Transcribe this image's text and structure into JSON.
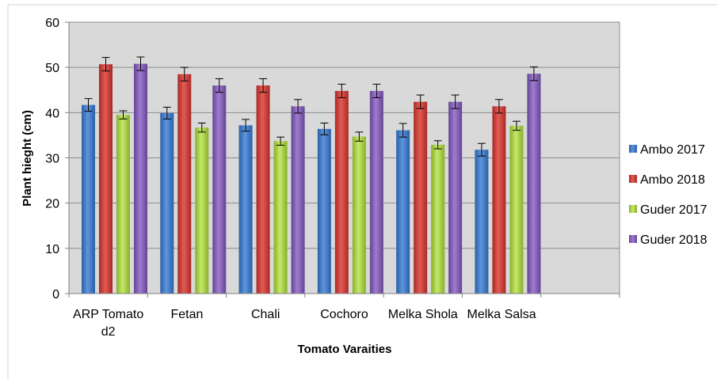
{
  "chart_data": {
    "type": "bar",
    "title": "",
    "xlabel": "Tomato Varaities",
    "ylabel": "Plant hieght (cm)",
    "ylim": [
      0,
      60
    ],
    "yticks": [
      "0",
      "10",
      "20",
      "30",
      "40",
      "50",
      "60"
    ],
    "grid": true,
    "legend_position": "right",
    "categories": [
      [
        "ARP Tomato",
        "d2"
      ],
      [
        "Fetan"
      ],
      [
        "Chali"
      ],
      [
        "Cochoro"
      ],
      [
        "Melka Shola"
      ],
      [
        "Melka Salsa"
      ]
    ],
    "series": [
      {
        "name": "Ambo 2017",
        "color": "#3d78c9",
        "values": [
          41.7,
          39.9,
          37.2,
          36.4,
          36.1,
          31.8
        ],
        "errors": [
          1.4,
          1.3,
          1.3,
          1.3,
          1.5,
          1.4
        ]
      },
      {
        "name": "Ambo 2018",
        "color": "#c83a35",
        "values": [
          50.7,
          48.5,
          46.0,
          44.8,
          42.4,
          41.4
        ],
        "errors": [
          1.5,
          1.5,
          1.5,
          1.5,
          1.5,
          1.5
        ]
      },
      {
        "name": "Guder 2017",
        "color": "#9cc73d",
        "values": [
          39.5,
          36.7,
          33.7,
          34.7,
          32.9,
          37.1
        ],
        "errors": [
          0.9,
          1.0,
          0.9,
          1.0,
          0.9,
          1.0
        ]
      },
      {
        "name": "Guder 2018",
        "color": "#7d5bab",
        "values": [
          50.8,
          46.0,
          41.4,
          44.8,
          42.4,
          48.6
        ],
        "errors": [
          1.5,
          1.5,
          1.5,
          1.5,
          1.5,
          1.5
        ]
      }
    ],
    "plot_background": "#d9d9d9",
    "gridline_color": "#8c8c8c"
  }
}
